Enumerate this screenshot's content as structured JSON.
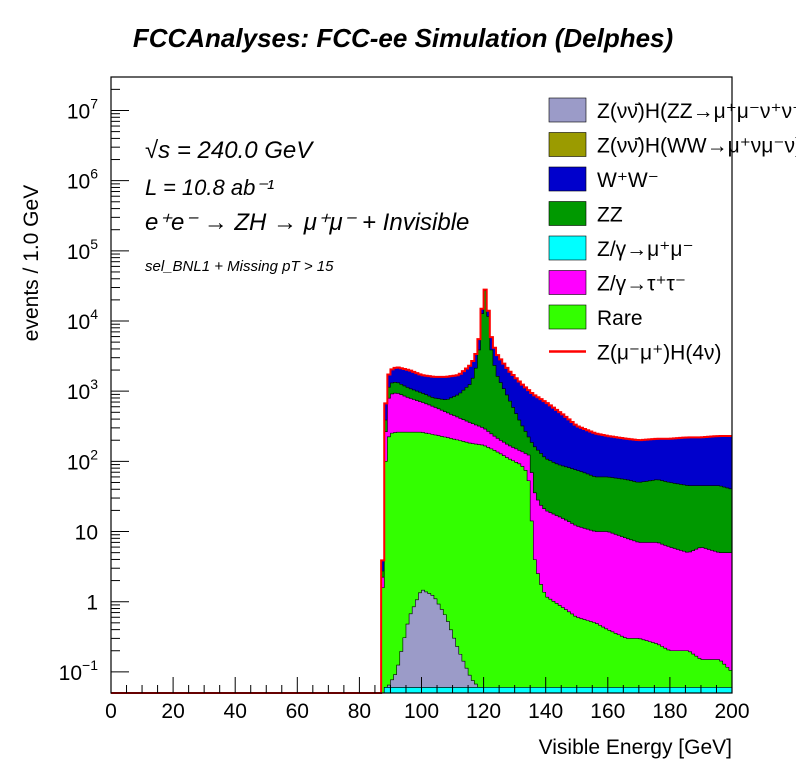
{
  "chart_data": {
    "type": "area",
    "title": "FCCAnalyses: FCC-ee Simulation (Delphes)",
    "xlabel": "Visible Energy [GeV]",
    "ylabel": "events / 1.0 GeV",
    "xlim": [
      0,
      200
    ],
    "ylim": [
      0.05,
      30000000
    ],
    "yscale": "log",
    "stacked": true,
    "bin_width": 1.0,
    "x_ticks": [
      "0",
      "20",
      "40",
      "60",
      "80",
      "100",
      "120",
      "140",
      "160",
      "180",
      "200"
    ],
    "y_ticks": [
      {
        "value": 0.1,
        "base": "10",
        "exp": "−1"
      },
      {
        "value": 1,
        "base": "1",
        "exp": ""
      },
      {
        "value": 10,
        "base": "10",
        "exp": ""
      },
      {
        "value": 100,
        "base": "10",
        "exp": "2"
      },
      {
        "value": 1000,
        "base": "10",
        "exp": "3"
      },
      {
        "value": 10000,
        "base": "10",
        "exp": "4"
      },
      {
        "value": 100000,
        "base": "10",
        "exp": "5"
      },
      {
        "value": 1000000,
        "base": "10",
        "exp": "6"
      },
      {
        "value": 10000000,
        "base": "10",
        "exp": "7"
      }
    ],
    "annotations": {
      "sqrt_s": "√s = 240.0 GeV",
      "lumi": "L = 10.8 ab⁻¹",
      "process": "e⁺e⁻ → ZH → μ⁺μ⁻ + Invisible",
      "selection": "sel_BNL1 + Missing pT > 15"
    },
    "legend_position": "top-right",
    "series": [
      {
        "name": "Z(νν̄)H(ZZ→μ⁺μ⁻ν⁺ν⁻)",
        "color": "#9b9bc8",
        "points": [
          [
            88,
            0.05
          ],
          [
            92,
            0.1
          ],
          [
            96,
            0.6
          ],
          [
            100,
            1.5
          ],
          [
            104,
            1.2
          ],
          [
            108,
            0.6
          ],
          [
            112,
            0.2
          ],
          [
            116,
            0.08
          ],
          [
            120,
            0.05
          ]
        ]
      },
      {
        "name": "Z(νν̄)H(WW→μ⁺νμ⁻ν)",
        "color": "#9b9b00",
        "points": [
          [
            88,
            0.06
          ],
          [
            120,
            0.06
          ]
        ]
      },
      {
        "name": "W⁺W⁻",
        "color": "#0000cc",
        "points": [
          [
            86,
            0.05
          ],
          [
            87,
            0.05
          ],
          [
            88,
            300
          ],
          [
            89,
            1500
          ],
          [
            90,
            2000
          ],
          [
            92,
            2200
          ],
          [
            96,
            2000
          ],
          [
            100,
            1700
          ],
          [
            104,
            1600
          ],
          [
            108,
            1600
          ],
          [
            112,
            1700
          ],
          [
            116,
            2400
          ],
          [
            118,
            3800
          ],
          [
            119,
            8000
          ],
          [
            120,
            28000
          ],
          [
            121,
            28000
          ],
          [
            122,
            7000
          ],
          [
            124,
            3500
          ],
          [
            128,
            2000
          ],
          [
            132,
            1300
          ],
          [
            136,
            900
          ],
          [
            140,
            700
          ],
          [
            146,
            450
          ],
          [
            150,
            320
          ],
          [
            156,
            250
          ],
          [
            160,
            230
          ],
          [
            166,
            210
          ],
          [
            170,
            200
          ],
          [
            176,
            210
          ],
          [
            180,
            210
          ],
          [
            186,
            220
          ],
          [
            190,
            220
          ],
          [
            196,
            230
          ],
          [
            200,
            230
          ]
        ]
      },
      {
        "name": "ZZ",
        "color": "#009900",
        "points": [
          [
            86,
            0.05
          ],
          [
            87,
            0.05
          ],
          [
            88,
            150
          ],
          [
            89,
            1000
          ],
          [
            90,
            1300
          ],
          [
            92,
            1350
          ],
          [
            96,
            1100
          ],
          [
            100,
            950
          ],
          [
            104,
            800
          ],
          [
            108,
            750
          ],
          [
            112,
            900
          ],
          [
            116,
            1300
          ],
          [
            118,
            2500
          ],
          [
            119,
            6000
          ],
          [
            120,
            27000
          ],
          [
            121,
            27000
          ],
          [
            122,
            5000
          ],
          [
            124,
            1800
          ],
          [
            128,
            800
          ],
          [
            132,
            350
          ],
          [
            136,
            170
          ],
          [
            140,
            110
          ],
          [
            144,
            90
          ],
          [
            148,
            80
          ],
          [
            152,
            70
          ],
          [
            156,
            60
          ],
          [
            160,
            60
          ],
          [
            166,
            55
          ],
          [
            170,
            50
          ],
          [
            176,
            55
          ],
          [
            180,
            50
          ],
          [
            186,
            45
          ],
          [
            190,
            45
          ],
          [
            196,
            45
          ],
          [
            200,
            40
          ]
        ]
      },
      {
        "name": "Z/γ→μ⁺μ⁻",
        "color": "#00ffff",
        "points": [
          [
            88,
            0.06
          ],
          [
            200,
            0.06
          ]
        ]
      },
      {
        "name": "Z/γ→τ⁺τ⁻",
        "color": "#ff00ff",
        "points": [
          [
            86,
            0.05
          ],
          [
            87,
            0.05
          ],
          [
            88,
            100
          ],
          [
            89,
            700
          ],
          [
            90,
            900
          ],
          [
            92,
            950
          ],
          [
            96,
            800
          ],
          [
            100,
            700
          ],
          [
            104,
            600
          ],
          [
            108,
            500
          ],
          [
            112,
            420
          ],
          [
            116,
            350
          ],
          [
            120,
            300
          ],
          [
            124,
            220
          ],
          [
            128,
            170
          ],
          [
            132,
            140
          ],
          [
            135,
            120
          ],
          [
            136,
            40
          ],
          [
            138,
            25
          ],
          [
            140,
            20
          ],
          [
            146,
            15
          ],
          [
            150,
            12
          ],
          [
            156,
            10
          ],
          [
            160,
            10
          ],
          [
            166,
            8
          ],
          [
            170,
            7
          ],
          [
            176,
            7
          ],
          [
            180,
            6
          ],
          [
            186,
            5
          ],
          [
            190,
            6
          ],
          [
            196,
            5
          ],
          [
            200,
            5
          ]
        ]
      },
      {
        "name": "Rare",
        "color": "#33ff00",
        "points": [
          [
            86,
            0.05
          ],
          [
            87,
            0.05
          ],
          [
            88,
            50
          ],
          [
            89,
            200
          ],
          [
            90,
            250
          ],
          [
            92,
            260
          ],
          [
            96,
            260
          ],
          [
            100,
            260
          ],
          [
            104,
            240
          ],
          [
            108,
            220
          ],
          [
            112,
            200
          ],
          [
            116,
            180
          ],
          [
            120,
            170
          ],
          [
            124,
            140
          ],
          [
            128,
            110
          ],
          [
            132,
            90
          ],
          [
            134,
            70
          ],
          [
            135,
            40
          ],
          [
            136,
            5
          ],
          [
            138,
            2
          ],
          [
            140,
            1.2
          ],
          [
            146,
            0.8
          ],
          [
            150,
            0.6
          ],
          [
            156,
            0.5
          ],
          [
            160,
            0.4
          ],
          [
            166,
            0.3
          ],
          [
            170,
            0.3
          ],
          [
            176,
            0.25
          ],
          [
            180,
            0.2
          ],
          [
            186,
            0.2
          ],
          [
            190,
            0.15
          ],
          [
            196,
            0.15
          ],
          [
            200,
            0.1
          ]
        ]
      },
      {
        "name": "Z(μ⁻μ⁺)H(4ν)",
        "color": "#ff0000",
        "style": "line",
        "points": [
          [
            0,
            0.05
          ],
          [
            86,
            0.05
          ],
          [
            87,
            0.05
          ],
          [
            88,
            300
          ],
          [
            89,
            1500
          ],
          [
            90,
            2000
          ],
          [
            92,
            2200
          ],
          [
            96,
            2000
          ],
          [
            100,
            1700
          ],
          [
            104,
            1600
          ],
          [
            108,
            1600
          ],
          [
            112,
            1700
          ],
          [
            116,
            2400
          ],
          [
            118,
            3800
          ],
          [
            119,
            8000
          ],
          [
            120,
            28000
          ],
          [
            121,
            28000
          ],
          [
            122,
            7000
          ],
          [
            124,
            3500
          ],
          [
            128,
            2000
          ],
          [
            132,
            1300
          ],
          [
            136,
            900
          ],
          [
            140,
            700
          ],
          [
            146,
            450
          ],
          [
            150,
            320
          ],
          [
            156,
            250
          ],
          [
            160,
            230
          ],
          [
            166,
            210
          ],
          [
            170,
            200
          ],
          [
            176,
            210
          ],
          [
            180,
            210
          ],
          [
            186,
            220
          ],
          [
            190,
            220
          ],
          [
            196,
            230
          ],
          [
            200,
            230
          ]
        ]
      }
    ]
  }
}
